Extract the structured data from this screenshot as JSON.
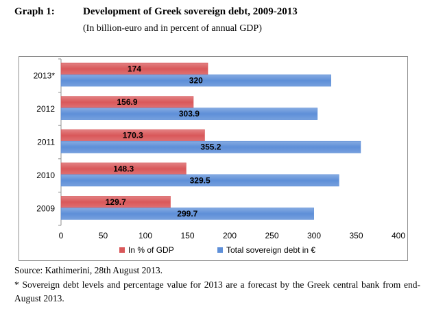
{
  "header": {
    "graph_number": "Graph 1:",
    "title": "Development of Greek sovereign debt, 2009-2013",
    "subtitle": "(In billion-euro and in percent of annual GDP)"
  },
  "colors": {
    "pct_gdp": "#d9585a",
    "total_debt": "#5e8fd8",
    "grid": "#c0c0c0"
  },
  "chart_data": {
    "type": "bar",
    "orientation": "horizontal",
    "categories": [
      "2013*",
      "2012",
      "2011",
      "2010",
      "2009"
    ],
    "series": [
      {
        "name": "In % of GDP",
        "values": [
          174,
          156.9,
          170.3,
          148.3,
          129.7
        ],
        "labels": [
          "174",
          "156.9",
          "170.3",
          "148.3",
          "129.7"
        ]
      },
      {
        "name": "Total sovereign  debt in €",
        "values": [
          320,
          303.9,
          355.2,
          329.5,
          299.7
        ],
        "labels": [
          "320",
          "303.9",
          "355.2",
          "329.5",
          "299.7"
        ]
      }
    ],
    "xlim": [
      0,
      400
    ],
    "xticks": [
      "0",
      "50",
      "100",
      "150",
      "200",
      "250",
      "300",
      "350",
      "400"
    ],
    "legend_position": "bottom",
    "grid": false
  },
  "footer": {
    "source": "Source: Kathimerini, 28th August 2013.",
    "note": "* Sovereign debt levels and percentage value for 2013 are a forecast by the Greek central bank from end-August 2013."
  }
}
